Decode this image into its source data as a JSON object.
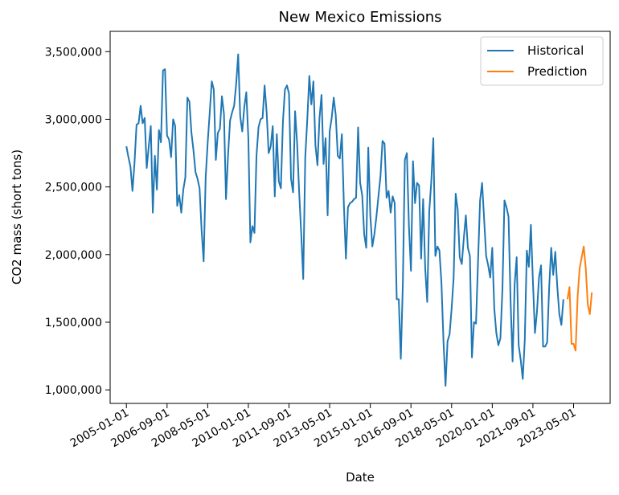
{
  "chart_data": {
    "type": "line",
    "title": "New Mexico Emissions",
    "xlabel": "Date",
    "ylabel": "CO2 mass (short tons)",
    "ylim": [
      900000,
      3650000
    ],
    "xlim": [
      "2004-05-01",
      "2024-11-01"
    ],
    "x_tick_labels": [
      "2005-01-01",
      "2006-09-01",
      "2008-05-01",
      "2010-01-01",
      "2011-09-01",
      "2013-05-01",
      "2015-01-01",
      "2016-09-01",
      "2018-05-01",
      "2020-01-01",
      "2021-09-01",
      "2023-05-01"
    ],
    "y_ticks": [
      1000000,
      1500000,
      2000000,
      2500000,
      3000000,
      3500000
    ],
    "y_tick_labels": [
      "1,000,000",
      "1,500,000",
      "2,000,000",
      "2,500,000",
      "3,000,000",
      "3,500,000"
    ],
    "grid": false,
    "legend_position": "top-right",
    "series": [
      {
        "name": "Historical",
        "color": "#1f77b4",
        "start": "2005-01",
        "values": [
          2800000,
          2720000,
          2650000,
          2470000,
          2680000,
          2960000,
          2970000,
          3100000,
          2970000,
          3010000,
          2640000,
          2800000,
          2950000,
          2310000,
          2730000,
          2480000,
          2920000,
          2830000,
          3360000,
          3370000,
          2880000,
          2850000,
          2720000,
          3000000,
          2950000,
          2360000,
          2440000,
          2310000,
          2480000,
          2570000,
          3160000,
          3130000,
          2900000,
          2770000,
          2610000,
          2560000,
          2490000,
          2180000,
          1950000,
          2570000,
          2830000,
          3050000,
          3280000,
          3220000,
          2700000,
          2900000,
          2930000,
          3170000,
          3040000,
          2410000,
          2730000,
          2990000,
          3050000,
          3100000,
          3260000,
          3480000,
          3020000,
          2910000,
          3090000,
          3200000,
          2860000,
          2090000,
          2210000,
          2160000,
          2730000,
          2940000,
          3000000,
          3010000,
          3250000,
          3050000,
          2750000,
          2800000,
          2950000,
          2430000,
          2890000,
          2540000,
          2490000,
          2980000,
          3220000,
          3250000,
          3190000,
          2560000,
          2460000,
          3060000,
          2820000,
          2460000,
          2160000,
          1820000,
          2720000,
          3000000,
          3320000,
          3110000,
          3280000,
          2810000,
          2660000,
          3010000,
          3180000,
          2670000,
          2860000,
          2290000,
          2910000,
          3010000,
          3160000,
          3030000,
          2730000,
          2710000,
          2890000,
          2370000,
          1970000,
          2350000,
          2380000,
          2390000,
          2410000,
          2420000,
          2940000,
          2530000,
          2440000,
          2150000,
          2050000,
          2790000,
          2290000,
          2060000,
          2150000,
          2280000,
          2430000,
          2580000,
          2840000,
          2820000,
          2420000,
          2470000,
          2310000,
          2430000,
          2380000,
          1670000,
          1670000,
          1230000,
          1780000,
          2700000,
          2750000,
          2210000,
          1880000,
          2690000,
          2380000,
          2530000,
          2510000,
          1970000,
          2410000,
          1900000,
          1650000,
          2320000,
          2540000,
          2860000,
          1990000,
          2060000,
          2030000,
          1790000,
          1360000,
          1030000,
          1360000,
          1410000,
          1600000,
          1830000,
          2450000,
          2330000,
          1980000,
          1930000,
          2120000,
          2290000,
          2050000,
          1990000,
          1240000,
          1500000,
          1490000,
          1950000,
          2400000,
          2530000,
          2260000,
          1990000,
          1920000,
          1830000,
          2050000,
          1600000,
          1420000,
          1330000,
          1380000,
          1740000,
          2400000,
          2350000,
          2280000,
          1660000,
          1210000,
          1780000,
          1980000,
          1330000,
          1220000,
          1080000,
          1370000,
          2030000,
          1910000,
          2220000,
          1800000,
          1420000,
          1580000,
          1830000,
          1920000,
          1320000,
          1320000,
          1350000,
          1760000,
          2050000,
          1850000,
          2020000,
          1760000,
          1560000,
          1480000,
          1670000
        ]
      },
      {
        "name": "Prediction",
        "color": "#ff7f0e",
        "start": "2023-02",
        "values": [
          1670000,
          1760000,
          1340000,
          1340000,
          1290000,
          1690000,
          1900000,
          1980000,
          2060000,
          1900000,
          1630000,
          1560000,
          1720000
        ]
      }
    ]
  }
}
